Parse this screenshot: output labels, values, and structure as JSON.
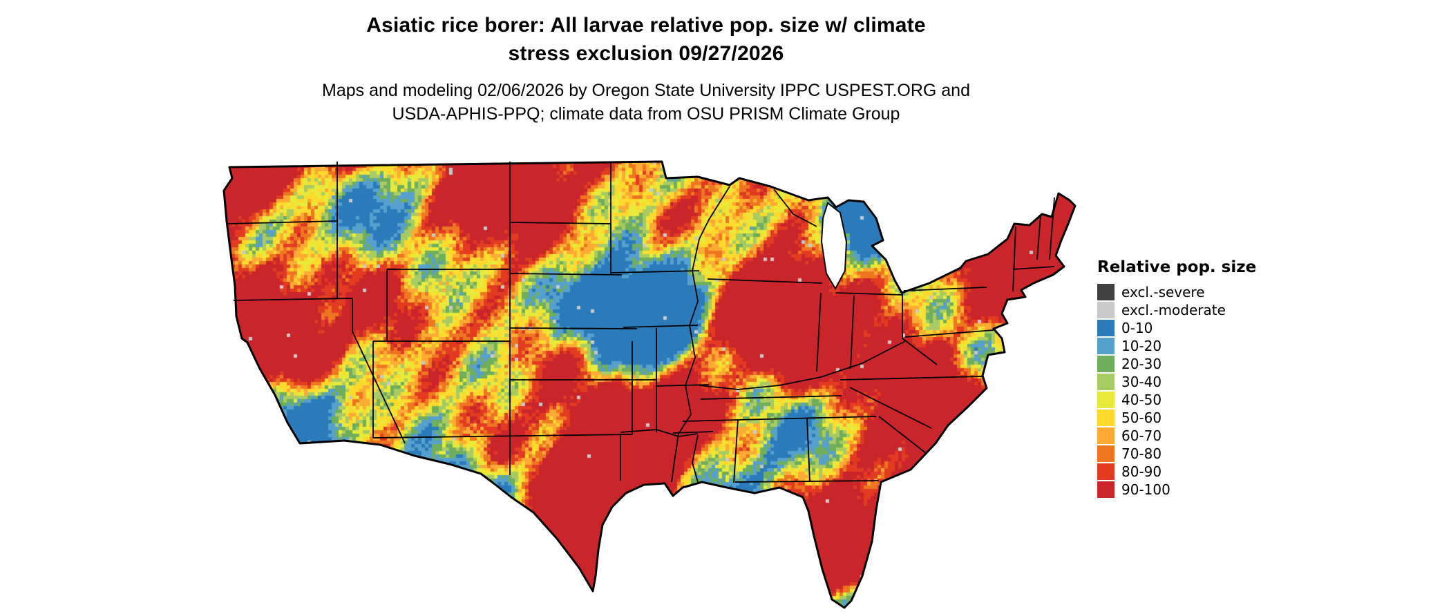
{
  "title": {
    "line1": "Asiatic rice borer: All larvae relative pop. size w/ climate",
    "line2": "stress exclusion 09/27/2026"
  },
  "subtitle": {
    "line1": "Maps and modeling 02/06/2026 by Oregon State University IPPC USPEST.ORG and",
    "line2": "USDA-APHIS-PPQ; climate data from OSU PRISM Climate Group"
  },
  "legend": {
    "title": "Relative pop. size",
    "entries": [
      {
        "label": "excl.-severe",
        "color": "#404040"
      },
      {
        "label": "excl.-moderate",
        "color": "#c9c9c9"
      },
      {
        "label": "0-10",
        "color": "#2b7bba"
      },
      {
        "label": "10-20",
        "color": "#56a0ce"
      },
      {
        "label": "20-30",
        "color": "#6fae5c"
      },
      {
        "label": "30-40",
        "color": "#a9cb63"
      },
      {
        "label": "40-50",
        "color": "#e7ea3a"
      },
      {
        "label": "50-60",
        "color": "#ffd92b"
      },
      {
        "label": "60-70",
        "color": "#fdab35"
      },
      {
        "label": "70-80",
        "color": "#ee7621"
      },
      {
        "label": "80-90",
        "color": "#e23b22"
      },
      {
        "label": "90-100",
        "color": "#c9252b"
      }
    ]
  }
}
